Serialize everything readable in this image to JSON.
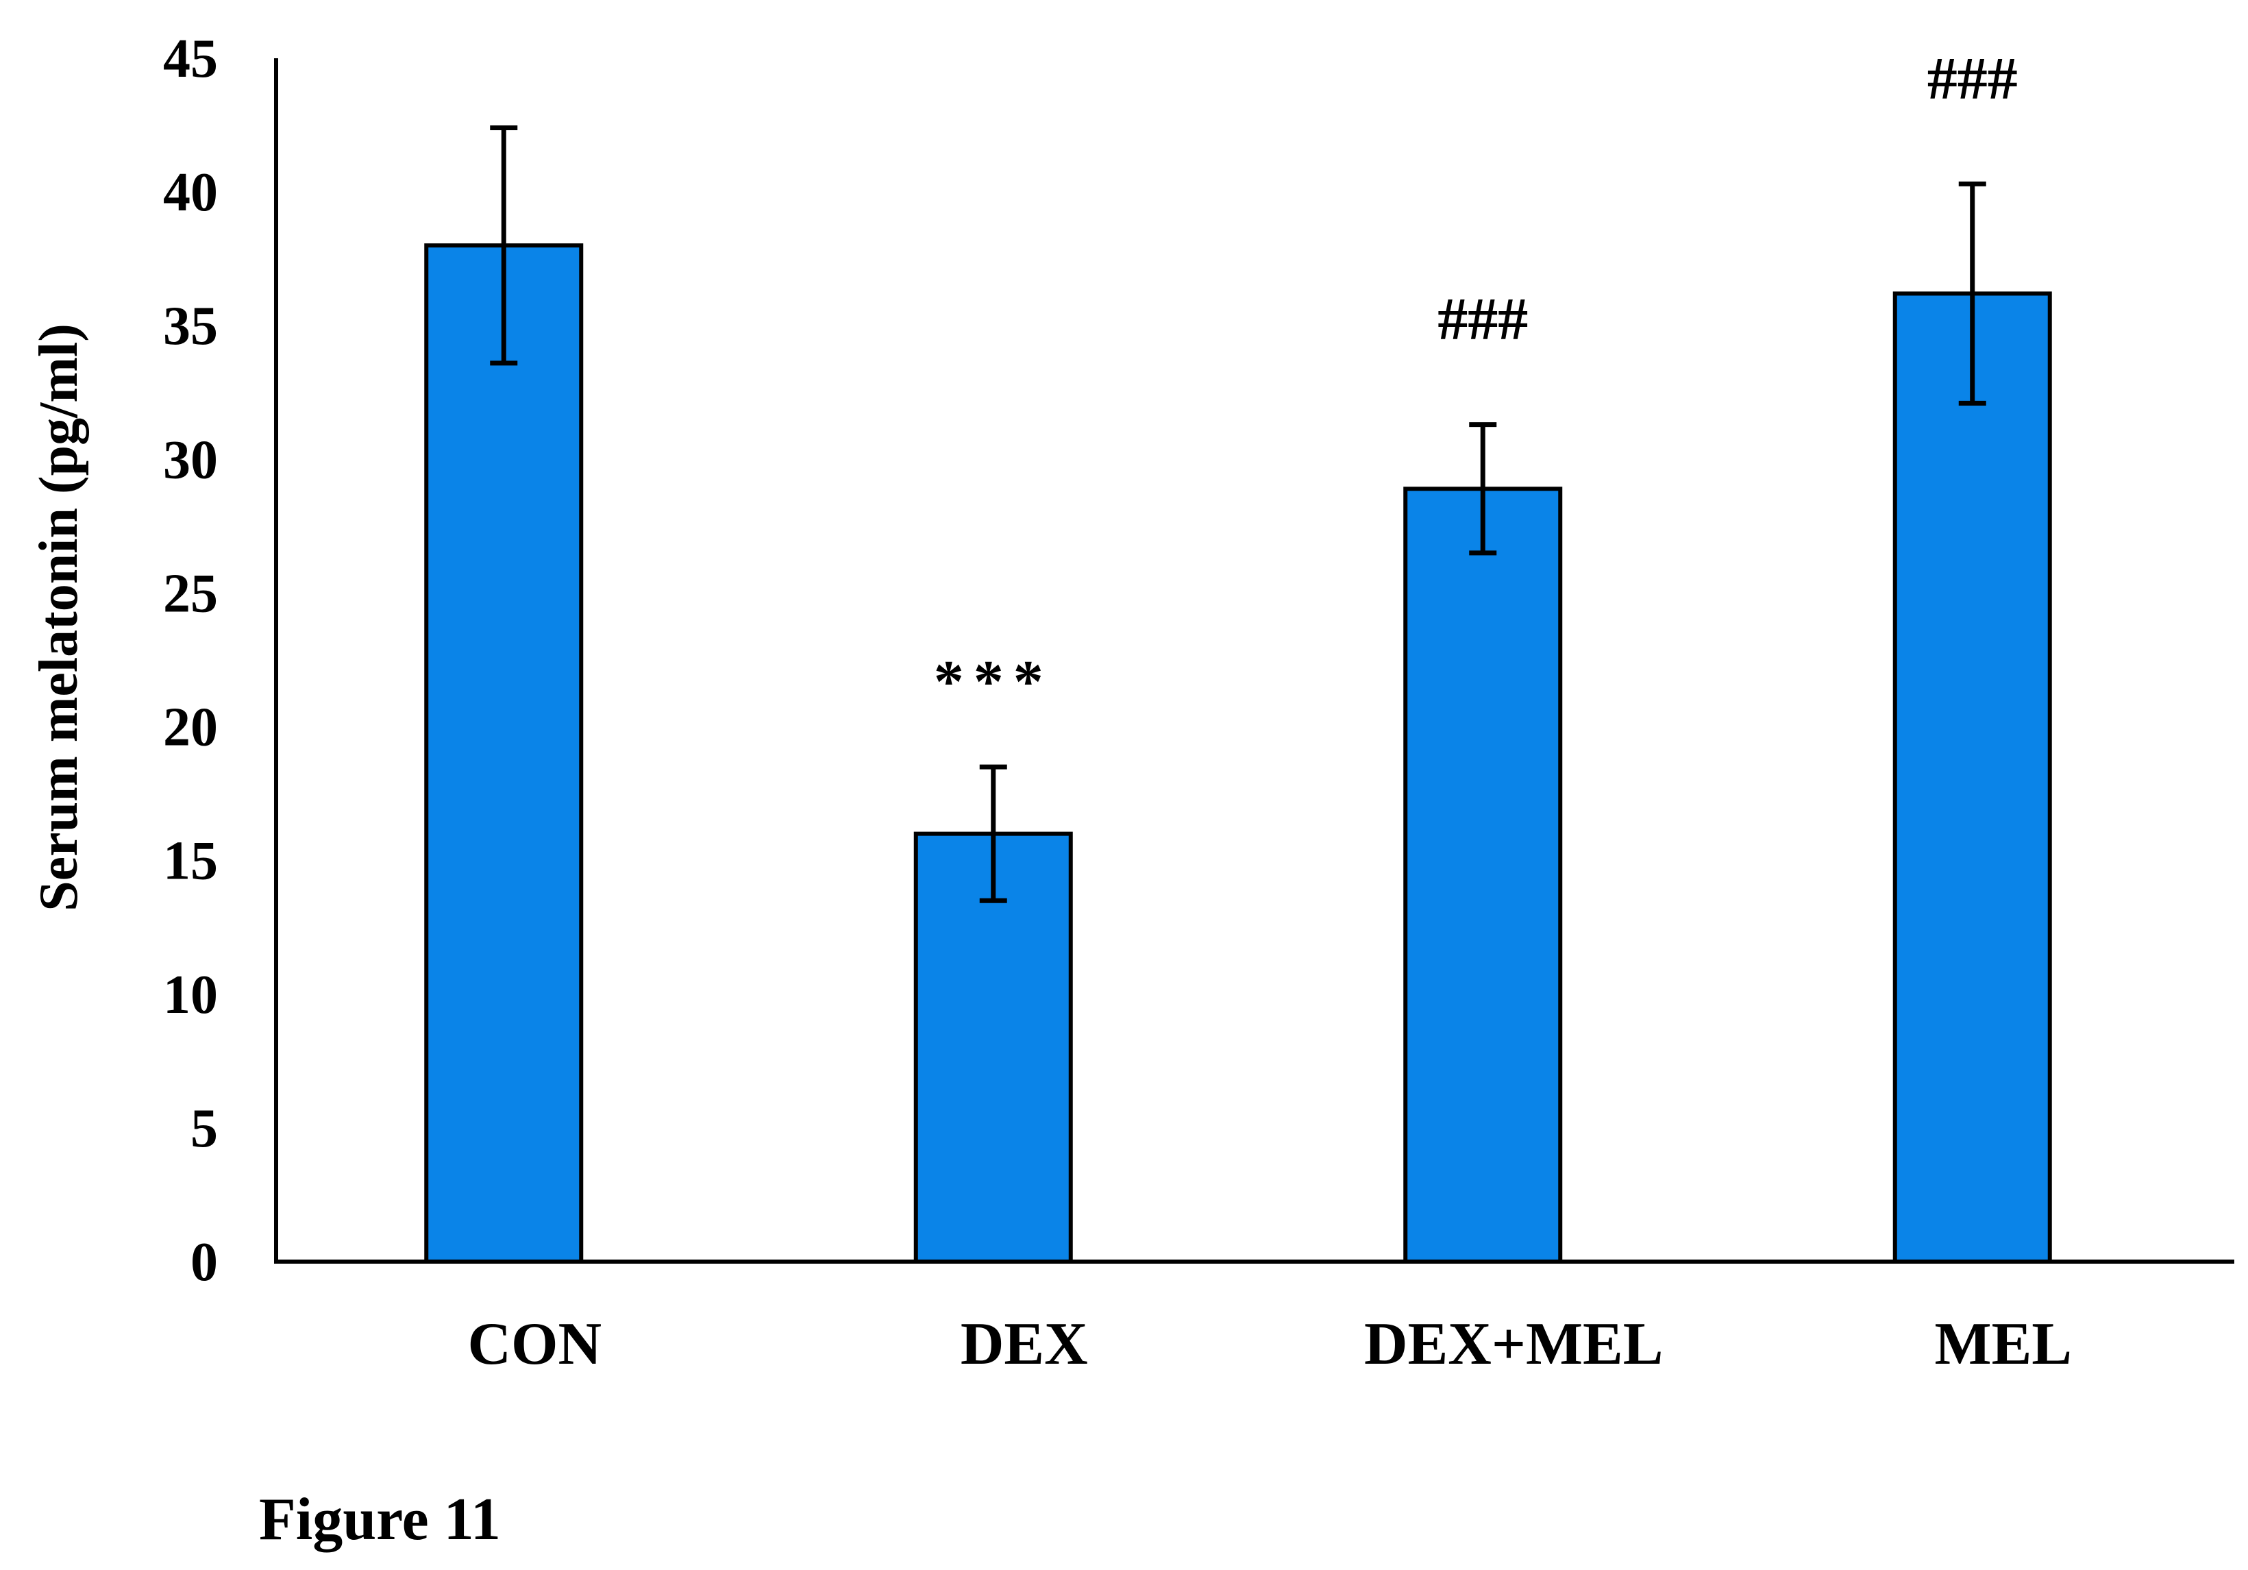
{
  "chart_data": {
    "type": "bar",
    "categories": [
      "CON",
      "DEX",
      "DEX+MEL",
      "MEL"
    ],
    "values": [
      38,
      16,
      28.9,
      36.2
    ],
    "errors": [
      4.4,
      2.5,
      2.4,
      4.1
    ],
    "annotations": [
      "",
      "***",
      "###",
      "###"
    ],
    "ylabel": "Serum melatonin (pg/ml)",
    "ylim": [
      0,
      45
    ],
    "yticks": [
      0,
      5,
      10,
      15,
      20,
      25,
      30,
      35,
      40,
      45
    ],
    "grid": false,
    "bar_color": "#0a84e8",
    "edge_color": "#000000"
  },
  "caption": "Figure 11"
}
